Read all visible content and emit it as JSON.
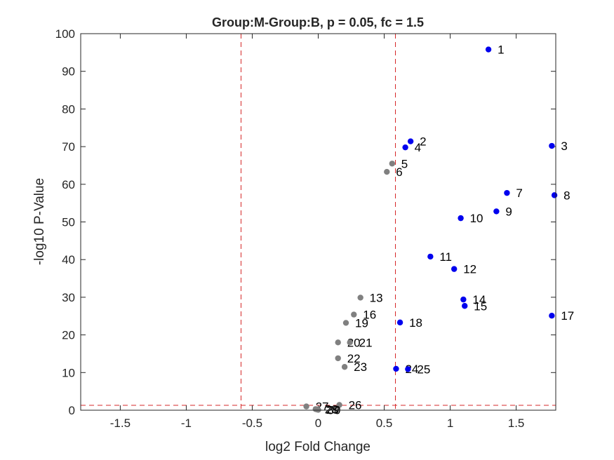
{
  "chart_data": {
    "type": "scatter",
    "title": "Group:M-Group:B, p = 0.05, fc = 1.5",
    "xlabel": "log2 Fold Change",
    "ylabel": "-log10 P-Value",
    "xlim": [
      -1.8,
      1.8
    ],
    "ylim": [
      0,
      100
    ],
    "xticks": [
      -1.5,
      -1,
      -0.5,
      0,
      0.5,
      1,
      1.5
    ],
    "xtick_labels": [
      "-1.5",
      "-1",
      "-0.5",
      "0",
      "0.5",
      "1",
      "1.5"
    ],
    "yticks": [
      0,
      10,
      20,
      30,
      40,
      50,
      60,
      70,
      80,
      90,
      100
    ],
    "ytick_labels": [
      "0",
      "10",
      "20",
      "30",
      "40",
      "50",
      "60",
      "70",
      "80",
      "90",
      "100"
    ],
    "grid": false,
    "threshold_lines": {
      "vertical": [
        -0.585,
        0.585
      ],
      "horizontal": 1.301,
      "color": "#d62728"
    },
    "colors": {
      "significant": "#0000ee",
      "not_significant": "#808080"
    },
    "points": [
      {
        "label": "1",
        "x": 1.29,
        "y": 95.8,
        "significant": true
      },
      {
        "label": "2",
        "x": 0.7,
        "y": 71.4,
        "significant": true
      },
      {
        "label": "3",
        "x": 1.77,
        "y": 70.2,
        "significant": true
      },
      {
        "label": "4",
        "x": 0.66,
        "y": 69.8,
        "significant": true
      },
      {
        "label": "5",
        "x": 0.56,
        "y": 65.5,
        "significant": false
      },
      {
        "label": "6",
        "x": 0.52,
        "y": 63.3,
        "significant": false
      },
      {
        "label": "7",
        "x": 1.43,
        "y": 57.7,
        "significant": true
      },
      {
        "label": "8",
        "x": 1.79,
        "y": 57.1,
        "significant": true
      },
      {
        "label": "9",
        "x": 1.35,
        "y": 52.8,
        "significant": true
      },
      {
        "label": "10",
        "x": 1.08,
        "y": 51.0,
        "significant": true
      },
      {
        "label": "11",
        "x": 0.85,
        "y": 40.8,
        "significant": true
      },
      {
        "label": "12",
        "x": 1.03,
        "y": 37.5,
        "significant": true
      },
      {
        "label": "13",
        "x": 0.32,
        "y": 29.9,
        "significant": false
      },
      {
        "label": "14",
        "x": 1.1,
        "y": 29.4,
        "significant": true
      },
      {
        "label": "15",
        "x": 1.11,
        "y": 27.7,
        "significant": true
      },
      {
        "label": "16",
        "x": 0.27,
        "y": 25.4,
        "significant": false
      },
      {
        "label": "17",
        "x": 1.77,
        "y": 25.1,
        "significant": true
      },
      {
        "label": "18",
        "x": 0.62,
        "y": 23.3,
        "significant": true
      },
      {
        "label": "19",
        "x": 0.21,
        "y": 23.2,
        "significant": false
      },
      {
        "label": "20",
        "x": 0.15,
        "y": 18.0,
        "significant": false
      },
      {
        "label": "21",
        "x": 0.24,
        "y": 18.0,
        "significant": false
      },
      {
        "label": "22",
        "x": 0.15,
        "y": 13.8,
        "significant": false
      },
      {
        "label": "23",
        "x": 0.2,
        "y": 11.5,
        "significant": false
      },
      {
        "label": "24",
        "x": 0.59,
        "y": 11.0,
        "significant": true
      },
      {
        "label": "25",
        "x": 0.68,
        "y": 10.9,
        "significant": true
      },
      {
        "label": "26",
        "x": 0.16,
        "y": 1.4,
        "significant": false
      },
      {
        "label": "27",
        "x": -0.09,
        "y": 1.0,
        "significant": false
      },
      {
        "label": "28",
        "x": -0.02,
        "y": 0.3,
        "significant": false
      },
      {
        "label": "29",
        "x": -0.01,
        "y": 0.2,
        "significant": false
      },
      {
        "label": "30",
        "x": 0.0,
        "y": 0.1,
        "significant": false
      }
    ]
  }
}
